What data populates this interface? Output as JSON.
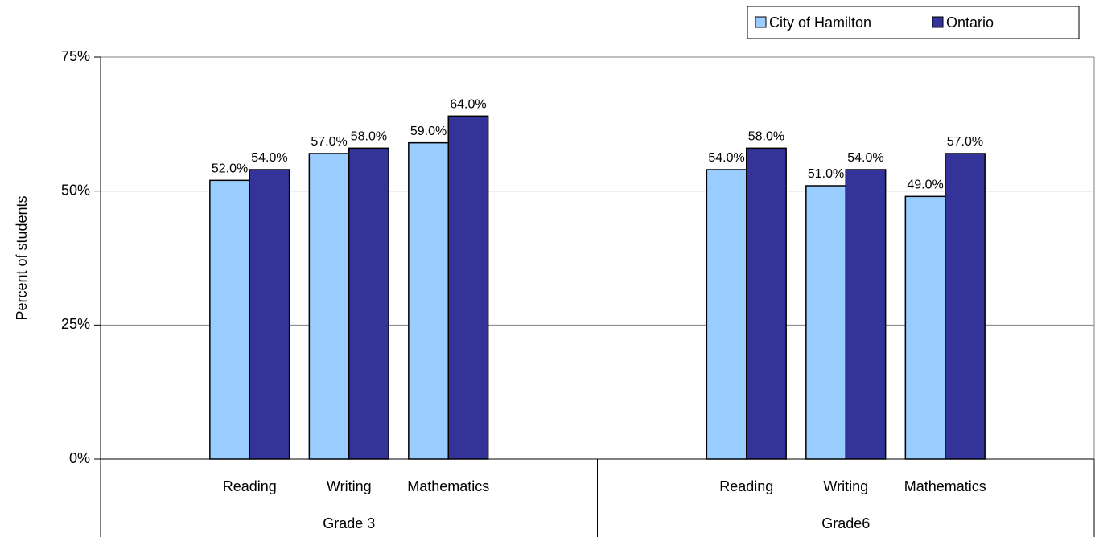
{
  "chart_data": {
    "type": "bar",
    "y_label": "Percent of students",
    "groups": [
      "Grade 3",
      "Grade6"
    ],
    "categories": [
      "Reading",
      "Writing",
      "Mathematics",
      "Reading",
      "Writing",
      "Mathematics"
    ],
    "series": [
      {
        "name": "City of Hamilton",
        "color": "#99ccff",
        "values": [
          52,
          57,
          59,
          54,
          51,
          49
        ],
        "value_labels": [
          "52.0%",
          "57.0%",
          "59.0%",
          "54.0%",
          "51.0%",
          "49.0%"
        ]
      },
      {
        "name": "Ontario",
        "color": "#333399",
        "values": [
          54,
          58,
          64,
          58,
          54,
          57
        ],
        "value_labels": [
          "54.0%",
          "58.0%",
          "64.0%",
          "58.0%",
          "54.0%",
          "57.0%"
        ]
      }
    ],
    "ylim": [
      0,
      75
    ],
    "yticks": [
      {
        "value": 0,
        "label": "0%"
      },
      {
        "value": 25,
        "label": "25%"
      },
      {
        "value": 50,
        "label": "50%"
      },
      {
        "value": 75,
        "label": "75%"
      }
    ],
    "grid": true,
    "legend": "top-right"
  }
}
